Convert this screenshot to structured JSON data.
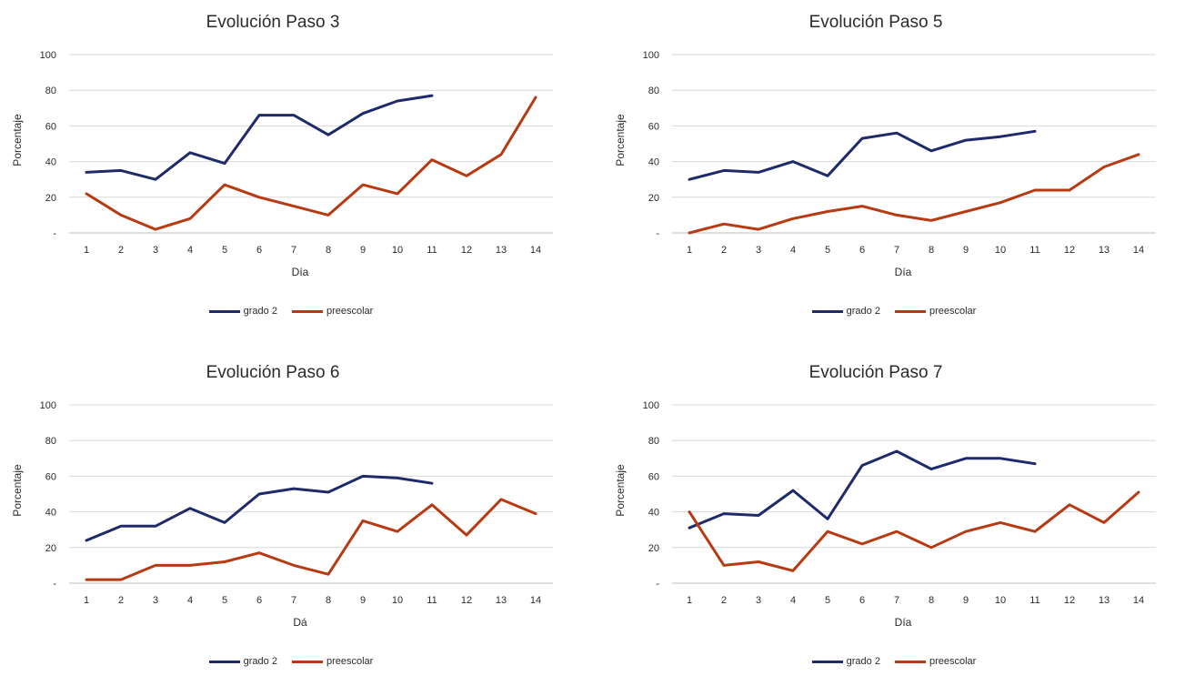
{
  "chart_data": [
    {
      "type": "line",
      "title": "Evolución Paso 3",
      "xlabel": "Día",
      "ylabel": "Porcentaje",
      "categories": [
        "1",
        "2",
        "3",
        "4",
        "5",
        "6",
        "7",
        "8",
        "9",
        "10",
        "11",
        "12",
        "13",
        "14"
      ],
      "ylim": [
        0,
        100
      ],
      "yticks": [
        "-",
        "20",
        "40",
        "60",
        "80",
        "100"
      ],
      "grid": true,
      "legend": "bottom",
      "series": [
        {
          "name": "grado 2",
          "color": "#1f2a6b",
          "values": [
            34,
            35,
            30,
            45,
            39,
            66,
            66,
            55,
            67,
            74,
            77,
            null,
            null,
            null
          ]
        },
        {
          "name": "preescolar",
          "color": "#b83a12",
          "values": [
            22,
            10,
            2,
            8,
            27,
            20,
            15,
            10,
            27,
            22,
            41,
            32,
            44,
            76
          ]
        }
      ]
    },
    {
      "type": "line",
      "title": "Evolución Paso 5",
      "xlabel": "Día",
      "ylabel": "Porcentaje",
      "categories": [
        "1",
        "2",
        "3",
        "4",
        "5",
        "6",
        "7",
        "8",
        "9",
        "10",
        "11",
        "12",
        "13",
        "14"
      ],
      "ylim": [
        0,
        100
      ],
      "yticks": [
        "-",
        "20",
        "40",
        "60",
        "80",
        "100"
      ],
      "grid": true,
      "legend": "bottom",
      "series": [
        {
          "name": "grado 2",
          "color": "#1f2a6b",
          "values": [
            30,
            35,
            34,
            40,
            32,
            53,
            56,
            46,
            52,
            54,
            57,
            null,
            null,
            null
          ]
        },
        {
          "name": "preescolar",
          "color": "#b83a12",
          "values": [
            0,
            5,
            2,
            8,
            12,
            15,
            10,
            7,
            12,
            17,
            24,
            24,
            37,
            44
          ]
        }
      ]
    },
    {
      "type": "line",
      "title": "Evolución Paso 6",
      "xlabel": "Dá",
      "ylabel": "Porcentaje",
      "categories": [
        "1",
        "2",
        "3",
        "4",
        "5",
        "6",
        "7",
        "8",
        "9",
        "10",
        "11",
        "12",
        "13",
        "14"
      ],
      "ylim": [
        0,
        100
      ],
      "yticks": [
        "-",
        "20",
        "40",
        "60",
        "80",
        "100"
      ],
      "grid": true,
      "legend": "bottom",
      "series": [
        {
          "name": "grado 2",
          "color": "#1f2a6b",
          "values": [
            24,
            32,
            32,
            42,
            34,
            50,
            53,
            51,
            60,
            59,
            56,
            null,
            null,
            null
          ]
        },
        {
          "name": "preescolar",
          "color": "#b83a12",
          "values": [
            2,
            2,
            10,
            10,
            12,
            17,
            10,
            5,
            35,
            29,
            44,
            27,
            47,
            39
          ]
        }
      ]
    },
    {
      "type": "line",
      "title": "Evolución Paso 7",
      "xlabel": "Día",
      "ylabel": "Porcentaje",
      "categories": [
        "1",
        "2",
        "3",
        "4",
        "5",
        "6",
        "7",
        "8",
        "9",
        "10",
        "11",
        "12",
        "13",
        "14"
      ],
      "ylim": [
        0,
        100
      ],
      "yticks": [
        "-",
        "20",
        "40",
        "60",
        "80",
        "100"
      ],
      "grid": true,
      "legend": "bottom",
      "series": [
        {
          "name": "grado 2",
          "color": "#1f2a6b",
          "values": [
            31,
            39,
            38,
            52,
            36,
            66,
            74,
            64,
            70,
            70,
            67,
            null,
            null,
            null
          ]
        },
        {
          "name": "preescolar",
          "color": "#b83a12",
          "values": [
            40,
            10,
            12,
            7,
            29,
            22,
            29,
            20,
            29,
            34,
            29,
            44,
            34,
            51
          ]
        }
      ]
    }
  ]
}
